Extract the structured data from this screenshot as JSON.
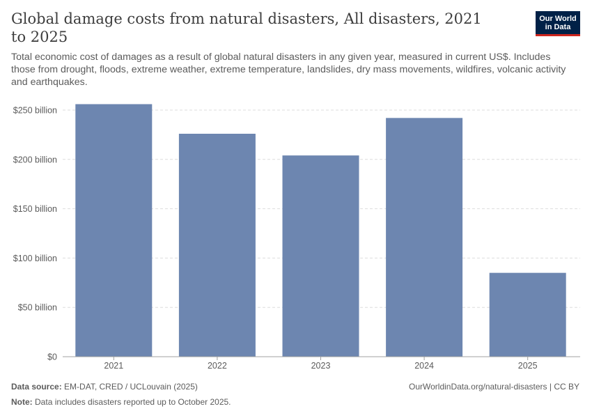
{
  "header": {
    "title": "Global damage costs from natural disasters, All disasters, 2021 to 2025",
    "subtitle": "Total economic cost of damages as a result of global natural disasters in any given year, measured in current US$. Includes those from drought, floods, extreme weather, extreme temperature, landslides, dry mass movements, wildfires, volcanic activity and earthquakes."
  },
  "logo": {
    "line1": "Our World",
    "line2": "in Data"
  },
  "footer": {
    "source_label": "Data source:",
    "source_text": "EM-DAT, CRED / UCLouvain (2025)",
    "url": "OurWorldinData.org/natural-disasters | CC BY",
    "note_label": "Note:",
    "note_text": "Data includes disasters reported up to October 2025."
  },
  "colors": {
    "bar": "#6d86b0",
    "grid": "#dddddd",
    "axis": "#a0a0a0",
    "text": "#5b5b5b"
  },
  "chart_data": {
    "type": "bar",
    "title": "Global damage costs from natural disasters, All disasters, 2021 to 2025",
    "categories": [
      "2021",
      "2022",
      "2023",
      "2024",
      "2025"
    ],
    "values": [
      256,
      226,
      204,
      242,
      85
    ],
    "unit": "billion US$",
    "ylim": [
      0,
      250
    ],
    "yticks": [
      0,
      50,
      100,
      150,
      200,
      250
    ],
    "ytick_labels": [
      "$0",
      "$50 billion",
      "$100 billion",
      "$150 billion",
      "$200 billion",
      "$250 billion"
    ],
    "xlabel": "",
    "ylabel": "",
    "grid": true
  }
}
